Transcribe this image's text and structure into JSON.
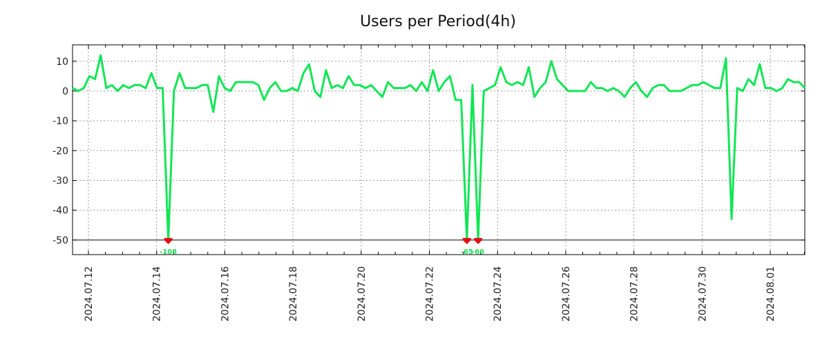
{
  "chart_data": {
    "type": "line",
    "title": "Users per Period(4h)",
    "xlabel": "",
    "ylabel": "",
    "ylim": [
      -54.9,
      15.5
    ],
    "clip_floor": -50,
    "yticks": [
      10,
      0,
      -10,
      -20,
      -30,
      -40,
      -50
    ],
    "xtick_labels": [
      "2024.07.12",
      "2024.07.14",
      "2024.07.16",
      "2024.07.18",
      "2024.07.20",
      "2024.07.22",
      "2024.07.24",
      "2024.07.26",
      "2024.07.28",
      "2024.07.30",
      "2024.08.01"
    ],
    "grid": true,
    "series": [
      {
        "name": "Users",
        "color": "#11e655",
        "values": [
          1,
          0,
          1,
          5,
          4,
          12,
          1,
          2,
          0,
          2,
          1,
          2,
          2,
          1,
          6,
          1,
          1,
          -108,
          0,
          6,
          1,
          1,
          1,
          2,
          2,
          -7,
          5,
          1,
          0,
          3,
          3,
          3,
          3,
          2,
          -3,
          1,
          3,
          0,
          0,
          1,
          0,
          6,
          9,
          0,
          -2,
          7,
          1,
          2,
          1,
          5,
          2,
          2,
          1,
          2,
          0,
          -2,
          3,
          1,
          1,
          1,
          2,
          0,
          3,
          0,
          7,
          0,
          3,
          5,
          -3,
          -3,
          -65,
          2,
          -66,
          0,
          1,
          2,
          8,
          3,
          2,
          3,
          2,
          8,
          -2,
          1,
          3,
          10,
          4,
          2,
          0,
          0,
          0,
          0,
          3,
          1,
          1,
          0,
          1,
          0,
          -2,
          1,
          3,
          0,
          -2,
          1,
          2,
          2,
          0,
          0,
          0,
          1,
          2,
          2,
          3,
          2,
          1,
          1,
          11,
          -43,
          1,
          0,
          4,
          2,
          9,
          1,
          1,
          0,
          1,
          4,
          3,
          3,
          1
        ]
      }
    ],
    "clip_marker_color": "#e01010"
  }
}
